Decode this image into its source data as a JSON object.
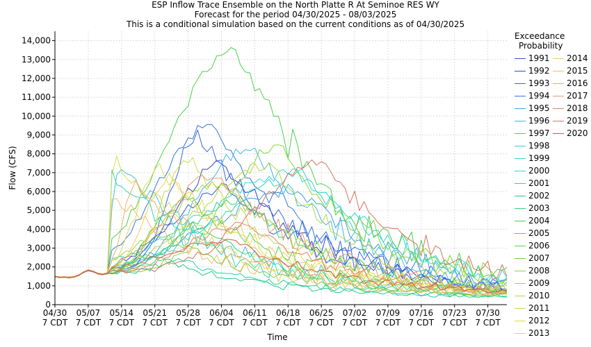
{
  "chart_data": {
    "type": "line",
    "title": "ESP Inflow Trace Ensemble on the North Platte R At Seminoe RES WY",
    "subtitle_lines": [
      "Forecast for the period 04/30/2025 - 08/03/2025",
      "This is a conditional simulation based on the current conditions as of 04/30/2025"
    ],
    "xlabel": "Time",
    "ylabel": "Flow (CFS)",
    "ylim": [
      0,
      14500
    ],
    "yticks": [
      0,
      1000,
      2000,
      3000,
      4000,
      5000,
      6000,
      7000,
      8000,
      9000,
      10000,
      11000,
      12000,
      13000,
      14000
    ],
    "ytick_labels": [
      "0",
      "1,000",
      "2,000",
      "3,000",
      "4,000",
      "5,000",
      "6,000",
      "7,000",
      "8,000",
      "9,000",
      "10,000",
      "11,000",
      "12,000",
      "13,000",
      "14,000"
    ],
    "xlim": [
      "2025-04-30",
      "2025-08-03"
    ],
    "xticks": [
      "2025-04-30",
      "2025-05-07",
      "2025-05-14",
      "2025-05-21",
      "2025-05-28",
      "2025-06-04",
      "2025-06-11",
      "2025-06-18",
      "2025-06-25",
      "2025-07-02",
      "2025-07-09",
      "2025-07-16",
      "2025-07-23",
      "2025-07-30"
    ],
    "xtick_labels": [
      [
        "04/30",
        "7 CDT"
      ],
      [
        "05/07",
        "7 CDT"
      ],
      [
        "05/14",
        "7 CDT"
      ],
      [
        "05/21",
        "7 CDT"
      ],
      [
        "05/28",
        "7 CDT"
      ],
      [
        "06/04",
        "7 CDT"
      ],
      [
        "06/11",
        "7 CDT"
      ],
      [
        "06/18",
        "7 CDT"
      ],
      [
        "06/25",
        "7 CDT"
      ],
      [
        "07/02",
        "7 CDT"
      ],
      [
        "07/09",
        "7 CDT"
      ],
      [
        "07/16",
        "7 CDT"
      ],
      [
        "07/23",
        "7 CDT"
      ],
      [
        "07/30",
        "7 CDT"
      ]
    ],
    "grid": true,
    "legend_title_lines": [
      "Exceedance",
      "Probability"
    ],
    "legend_position": "right",
    "series": [
      {
        "name": "1991",
        "color": "#3a4fd6",
        "peak_date": "2025-06-05",
        "peak": 6200
      },
      {
        "name": "1992",
        "color": "#2f45c0",
        "peak_date": "2025-06-04",
        "peak": 7500
      },
      {
        "name": "1993",
        "color": "#3866e0",
        "peak_date": "2025-05-30",
        "peak": 9000
      },
      {
        "name": "1994",
        "color": "#2e7ad8",
        "peak_date": "2025-06-02",
        "peak": 9600
      },
      {
        "name": "1995",
        "color": "#3aa0e0",
        "peak_date": "2025-06-20",
        "peak": 6100
      },
      {
        "name": "1996",
        "color": "#45b4e8",
        "peak_date": "2025-06-10",
        "peak": 8400
      },
      {
        "name": "1997",
        "color": "#3cc4e4",
        "peak_date": "2025-05-14",
        "peak": 7300
      },
      {
        "name": "1998",
        "color": "#34d2d8",
        "peak_date": "2025-06-20",
        "peak": 7000
      },
      {
        "name": "1999",
        "color": "#30d8c8",
        "peak_date": "2025-06-22",
        "peak": 6900
      },
      {
        "name": "2000",
        "color": "#2cd8b4",
        "peak_date": "2025-05-12",
        "peak": 6900
      },
      {
        "name": "2001",
        "color": "#26d29e",
        "peak_date": "2025-05-26",
        "peak": 2400
      },
      {
        "name": "2002",
        "color": "#22cc88",
        "peak_date": "2025-05-20",
        "peak": 2600
      },
      {
        "name": "2003",
        "color": "#30d070",
        "peak_date": "2025-06-08",
        "peak": 5600
      },
      {
        "name": "2004",
        "color": "#3ecf5a",
        "peak_date": "2025-05-30",
        "peak": 4200
      },
      {
        "name": "2005",
        "color": "#4ad04c",
        "peak_date": "2025-06-07",
        "peak": 13600
      },
      {
        "name": "2006",
        "color": "#58d040",
        "peak_date": "2025-05-28",
        "peak": 5600
      },
      {
        "name": "2007",
        "color": "#70d23a",
        "peak_date": "2025-05-22",
        "peak": 3800
      },
      {
        "name": "2008",
        "color": "#86d43a",
        "peak_date": "2025-06-16",
        "peak": 8500
      },
      {
        "name": "2009",
        "color": "#9cd63c",
        "peak_date": "2025-06-04",
        "peak": 6400
      },
      {
        "name": "2010",
        "color": "#b2d840",
        "peak_date": "2025-06-14",
        "peak": 7400
      },
      {
        "name": "2011",
        "color": "#c8da44",
        "peak_date": "2025-05-28",
        "peak": 7800
      },
      {
        "name": "2012",
        "color": "#d8dc4a",
        "peak_date": "2025-05-13",
        "peak": 7600
      },
      {
        "name": "2013",
        "color": "#e4d850",
        "peak_date": "2025-05-22",
        "peak": 7200
      },
      {
        "name": "2014",
        "color": "#ecd05a",
        "peak_date": "2025-05-24",
        "peak": 6800
      },
      {
        "name": "2015",
        "color": "#eec062",
        "peak_date": "2025-05-11",
        "peak": 6200
      },
      {
        "name": "2016",
        "color": "#eeae68",
        "peak_date": "2025-05-17",
        "peak": 6300
      },
      {
        "name": "2017",
        "color": "#e89a6c",
        "peak_date": "2025-06-03",
        "peak": 6900
      },
      {
        "name": "2018",
        "color": "#e2846c",
        "peak_date": "2025-06-09",
        "peak": 4400
      },
      {
        "name": "2019",
        "color": "#d8705e",
        "peak_date": "2025-06-25",
        "peak": 7600
      },
      {
        "name": "2020",
        "color": "#cc5a48",
        "peak_date": "2025-06-06",
        "peak": 3400
      }
    ]
  }
}
